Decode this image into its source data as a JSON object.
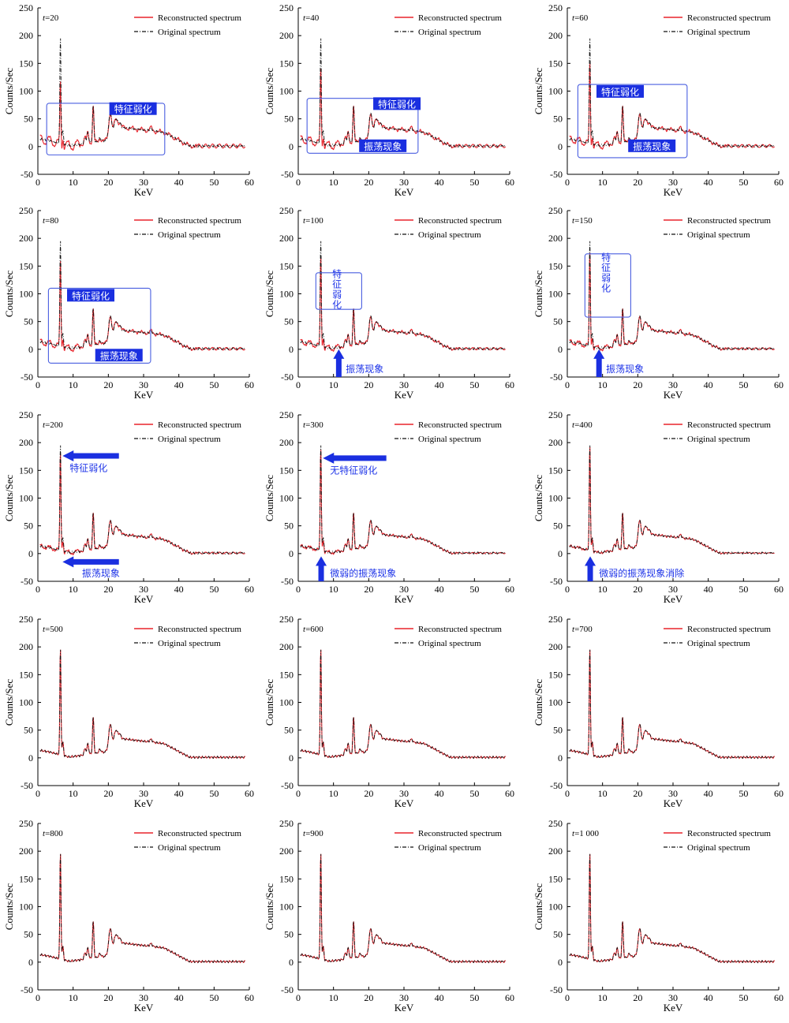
{
  "figure": {
    "common": {
      "ylabel": "Counts/Sec",
      "xlabel": "KeV",
      "xlim": [
        0,
        60
      ],
      "ylim": [
        -50,
        250
      ],
      "xticks": [
        0,
        10,
        20,
        30,
        40,
        50,
        60
      ],
      "yticks": [
        -50,
        0,
        50,
        100,
        150,
        200,
        250
      ],
      "legend_reconstructed": "Reconstructed spectrum",
      "legend_original": "Original spectrum",
      "colors": {
        "reconstructed": "#e8242c",
        "original": "#111111",
        "annotation": "#1f35e8",
        "box": "#4a5fe0",
        "label_bg": "#1a2fe0"
      }
    }
  },
  "chart_data": [
    {
      "type": "line",
      "param_label": "t",
      "param_value": "=20",
      "oscillation": 6,
      "annotations": [
        {
          "kind": "box",
          "x": [
            2.5,
            36
          ],
          "y": [
            -15,
            78
          ]
        },
        {
          "kind": "label",
          "style": "filled",
          "text": "特征弱化",
          "x": 27,
          "y": 67
        }
      ]
    },
    {
      "type": "line",
      "param_label": "t",
      "param_value": "=40",
      "oscillation": 5,
      "annotations": [
        {
          "kind": "box",
          "x": [
            2.5,
            34
          ],
          "y": [
            -12,
            87
          ]
        },
        {
          "kind": "label",
          "style": "filled",
          "text": "特征弱化",
          "x": 28,
          "y": 76
        },
        {
          "kind": "label",
          "style": "filled",
          "text": "振荡现象",
          "x": 24,
          "y": 0
        }
      ]
    },
    {
      "type": "line",
      "param_label": "t",
      "param_value": "=60",
      "oscillation": 4.5,
      "annotations": [
        {
          "kind": "box",
          "x": [
            3,
            34
          ],
          "y": [
            -20,
            112
          ]
        },
        {
          "kind": "label",
          "style": "filled",
          "text": "特征弱化",
          "x": 15,
          "y": 98
        },
        {
          "kind": "label",
          "style": "filled",
          "text": "振荡现象",
          "x": 24,
          "y": 0
        }
      ]
    },
    {
      "type": "line",
      "param_label": "t",
      "param_value": "=80",
      "oscillation": 4,
      "annotations": [
        {
          "kind": "box",
          "x": [
            3,
            32
          ],
          "y": [
            -25,
            110
          ]
        },
        {
          "kind": "label",
          "style": "filled",
          "text": "特征弱化",
          "x": 15,
          "y": 96
        },
        {
          "kind": "label",
          "style": "filled",
          "text": "振荡现象",
          "x": 23,
          "y": -12
        }
      ]
    },
    {
      "type": "line",
      "param_label": "t",
      "param_value": "=100",
      "oscillation": 3.5,
      "annotations": [
        {
          "kind": "box",
          "x": [
            5,
            18
          ],
          "y": [
            72,
            138
          ]
        },
        {
          "kind": "label",
          "style": "vertical",
          "chars": [
            "特",
            "征",
            "弱",
            "化"
          ],
          "x": 11,
          "y": 130
        },
        {
          "kind": "arrow-up",
          "x": 11.5,
          "y0": -50,
          "y1": 0
        },
        {
          "kind": "label",
          "style": "plain",
          "text": "振荡现象",
          "x": 13.5,
          "y": -36
        }
      ]
    },
    {
      "type": "line",
      "param_label": "t",
      "param_value": "=150",
      "oscillation": 3,
      "annotations": [
        {
          "kind": "box",
          "x": [
            5,
            18
          ],
          "y": [
            58,
            172
          ]
        },
        {
          "kind": "label",
          "style": "vertical",
          "chars": [
            "特",
            "征",
            "弱",
            "化"
          ],
          "x": 11,
          "y": 160
        },
        {
          "kind": "arrow-up",
          "x": 9,
          "y0": -50,
          "y1": 0
        },
        {
          "kind": "label",
          "style": "plain",
          "text": "振荡现象",
          "x": 11,
          "y": -36
        }
      ]
    },
    {
      "type": "line",
      "param_label": "t",
      "param_value": "=200",
      "oscillation": 2.5,
      "annotations": [
        {
          "kind": "arrow-left",
          "y": 176,
          "x0": 23,
          "x1": 7
        },
        {
          "kind": "label",
          "style": "plain",
          "text": "特征弱化",
          "x": 9,
          "y": 154
        },
        {
          "kind": "arrow-left",
          "y": -15,
          "x0": 23,
          "x1": 7
        },
        {
          "kind": "label",
          "style": "plain",
          "text": "振荡现象",
          "x": 12.5,
          "y": -36
        }
      ]
    },
    {
      "type": "line",
      "param_label": "t",
      "param_value": "=300",
      "oscillation": 1.8,
      "annotations": [
        {
          "kind": "arrow-left",
          "y": 172,
          "x0": 25,
          "x1": 7
        },
        {
          "kind": "label",
          "style": "plain",
          "text": "无特征弱化",
          "x": 9,
          "y": 150
        },
        {
          "kind": "arrow-up",
          "x": 6.5,
          "y0": -50,
          "y1": -5
        },
        {
          "kind": "label",
          "style": "plain",
          "text": "微弱的振荡现象",
          "x": 9,
          "y": -36
        }
      ]
    },
    {
      "type": "line",
      "param_label": "t",
      "param_value": "=400",
      "oscillation": 1,
      "annotations": [
        {
          "kind": "arrow-up",
          "x": 6.5,
          "y0": -50,
          "y1": -5
        },
        {
          "kind": "label",
          "style": "plain",
          "text": "微弱的振荡现象消除",
          "x": 9,
          "y": -36
        }
      ]
    },
    {
      "type": "line",
      "param_label": "t",
      "param_value": "=500",
      "oscillation": 0,
      "annotations": []
    },
    {
      "type": "line",
      "param_label": "t",
      "param_value": "=600",
      "oscillation": 0,
      "annotations": []
    },
    {
      "type": "line",
      "param_label": "t",
      "param_value": "=700",
      "oscillation": 0,
      "annotations": []
    },
    {
      "type": "line",
      "param_label": "t",
      "param_value": "=800",
      "oscillation": 0,
      "annotations": []
    },
    {
      "type": "line",
      "param_label": "t",
      "param_value": "=900",
      "oscillation": 0,
      "annotations": []
    },
    {
      "type": "line",
      "param_label": "t",
      "param_value": "=1 000",
      "oscillation": 0,
      "annotations": []
    }
  ]
}
